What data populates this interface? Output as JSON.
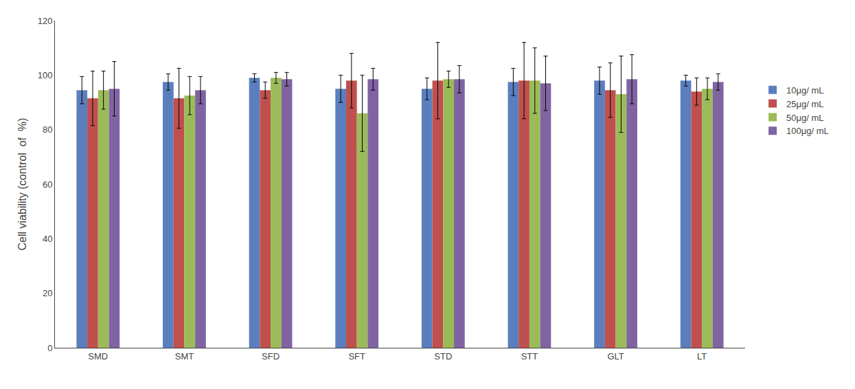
{
  "chart_data": {
    "type": "bar",
    "categories": [
      "SMD",
      "SMT",
      "SFD",
      "SFT",
      "STD",
      "STT",
      "GLT",
      "LT"
    ],
    "series": [
      {
        "name": "10μg/ mL",
        "color": "#5B7FBE",
        "values": [
          94.5,
          97.5,
          99.0,
          95.0,
          95.0,
          97.5,
          98.0,
          98.0
        ],
        "errors": [
          5.0,
          3.0,
          1.5,
          5.0,
          4.0,
          5.0,
          5.0,
          2.0
        ]
      },
      {
        "name": "25μg/ mL",
        "color": "#C0504D",
        "values": [
          91.5,
          91.5,
          94.5,
          98.0,
          98.0,
          98.0,
          94.5,
          94.0
        ],
        "errors": [
          10.0,
          11.0,
          3.0,
          10.0,
          14.0,
          14.0,
          10.0,
          5.0
        ]
      },
      {
        "name": "50μg/ mL",
        "color": "#9BBB59",
        "values": [
          94.5,
          92.5,
          99.0,
          86.0,
          98.5,
          98.0,
          93.0,
          95.0
        ],
        "errors": [
          7.0,
          7.0,
          2.0,
          14.0,
          3.0,
          12.0,
          14.0,
          4.0
        ]
      },
      {
        "name": "100μg/ mL",
        "color": "#8064A2",
        "values": [
          95.0,
          94.5,
          98.5,
          98.5,
          98.5,
          97.0,
          98.5,
          97.5
        ],
        "errors": [
          10.0,
          5.0,
          2.5,
          4.0,
          5.0,
          10.0,
          9.0,
          3.0
        ]
      }
    ],
    "ylabel": "Cell viability (control  of  %)",
    "ylim": [
      0,
      120
    ],
    "yticks": [
      0,
      20,
      40,
      60,
      80,
      100,
      120
    ],
    "grid": false,
    "legend": "right"
  }
}
